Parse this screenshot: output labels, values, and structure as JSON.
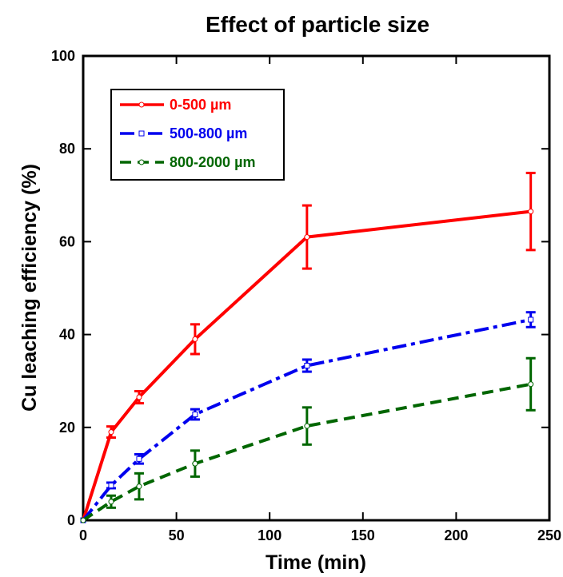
{
  "chart_data": {
    "type": "line",
    "title": "Effect of particle size",
    "xlabel": "Time (min)",
    "ylabel": "Cu leaching efficiency (%)",
    "xlim": [
      0,
      250
    ],
    "ylim": [
      0,
      100
    ],
    "xticks": [
      0,
      50,
      100,
      150,
      200,
      250
    ],
    "yticks": [
      0,
      20,
      40,
      60,
      80,
      100
    ],
    "grid": false,
    "legend_position": "top-left",
    "series": [
      {
        "name": "0-500 µm",
        "color": "#ff0000",
        "dash": "solid",
        "marker": "circle",
        "x": [
          0,
          15,
          30,
          60,
          120,
          240
        ],
        "y": [
          0,
          19,
          26.5,
          39,
          61,
          66.5
        ],
        "err": [
          0,
          1.2,
          1.3,
          3.2,
          6.8,
          8.3
        ]
      },
      {
        "name": "500-800 µm",
        "color": "#0000ee",
        "dash": "dashdot",
        "marker": "square",
        "x": [
          0,
          15,
          30,
          60,
          120,
          240
        ],
        "y": [
          0,
          7.5,
          13.2,
          22.8,
          33.3,
          43.2
        ],
        "err": [
          0,
          0.6,
          1.0,
          1.1,
          1.3,
          1.6
        ]
      },
      {
        "name": "800-2000 µm",
        "color": "#006600",
        "dash": "dashed",
        "marker": "circle",
        "x": [
          0,
          15,
          30,
          60,
          120,
          240
        ],
        "y": [
          0,
          4,
          7.3,
          12.2,
          20.3,
          29.3
        ],
        "err": [
          0,
          1.3,
          2.8,
          2.8,
          4.0,
          5.6
        ]
      }
    ]
  }
}
